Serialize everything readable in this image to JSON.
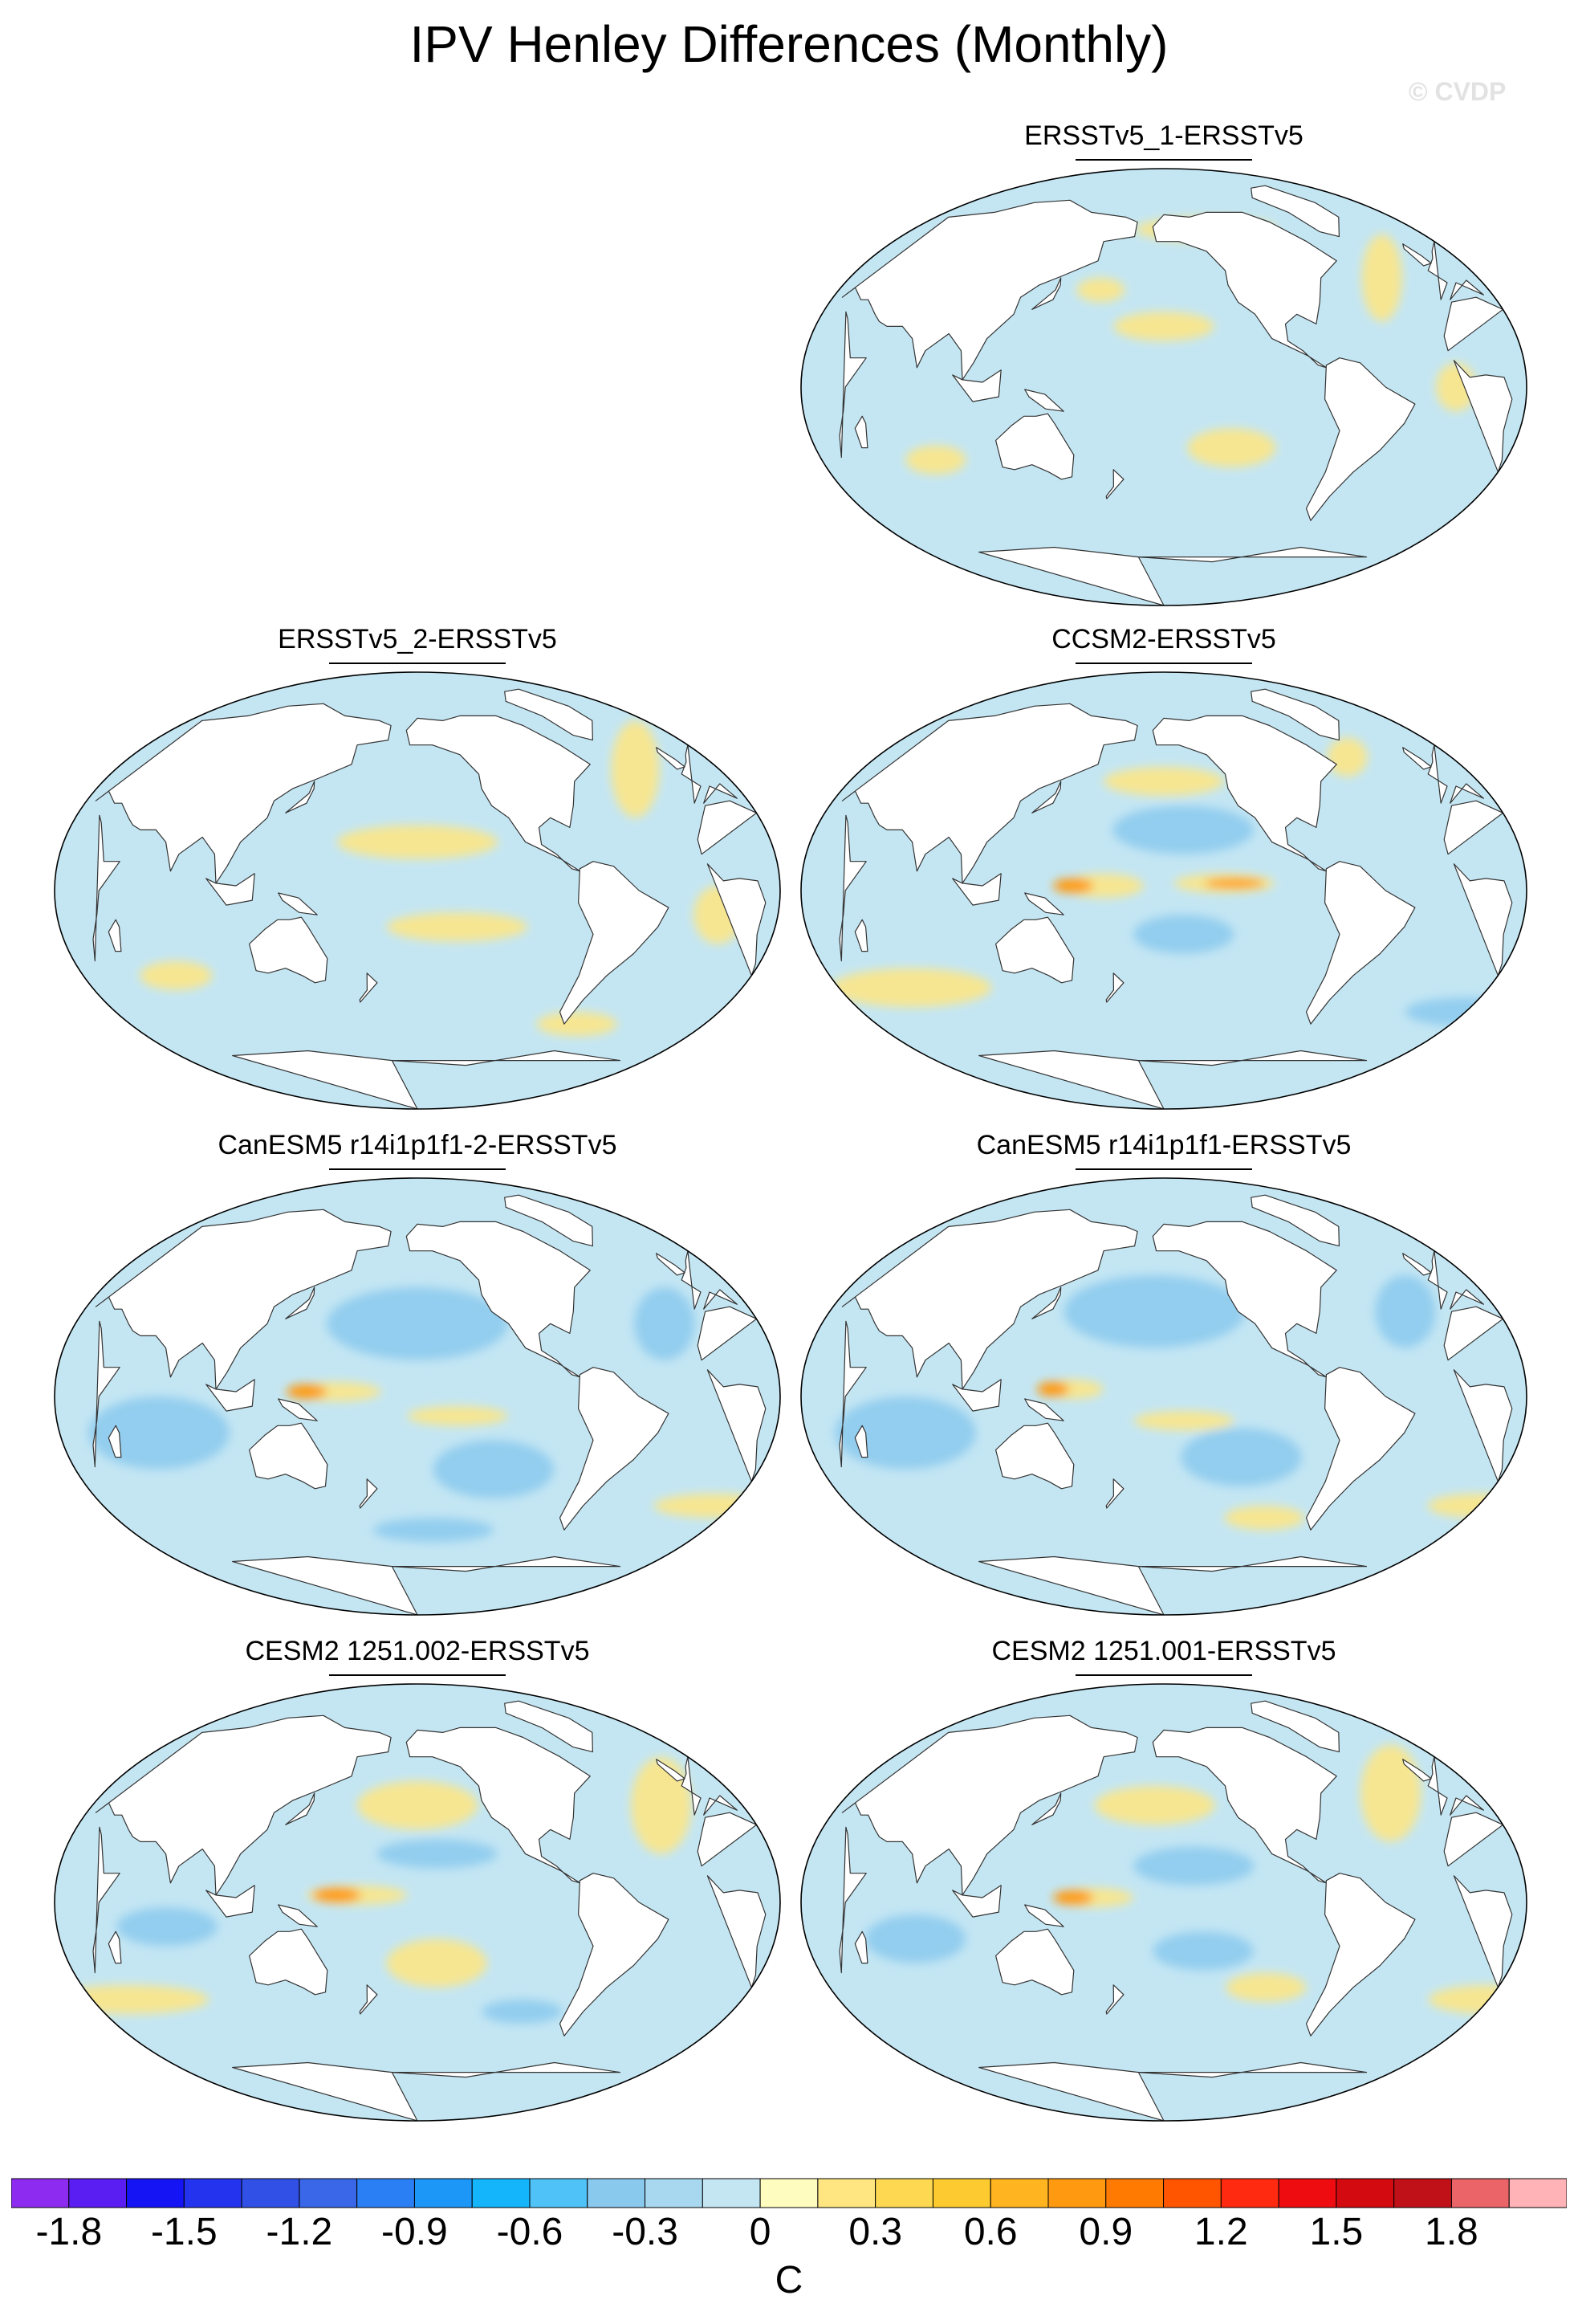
{
  "title": "IPV Henley Differences (Monthly)",
  "copyright": "© CVDP",
  "panels": [
    {
      "id": "ersstv5-1",
      "title": "ERSSTv5_1-ERSSTv5",
      "slot": "top-right",
      "features": [
        {
          "type": "pos",
          "lon": -160,
          "lat": 25,
          "rlon": 25,
          "rlat": 6
        },
        {
          "type": "pos",
          "lon": 165,
          "lat": 40,
          "rlon": 12,
          "rlat": 5
        },
        {
          "type": "pos",
          "lon": -125,
          "lat": -25,
          "rlon": 22,
          "rlat": 8
        },
        {
          "type": "pos",
          "lon": 80,
          "lat": -30,
          "rlon": 15,
          "rlat": 6
        },
        {
          "type": "pos",
          "lon": -35,
          "lat": 45,
          "rlon": 10,
          "rlat": 18
        },
        {
          "type": "pos",
          "lon": -15,
          "lat": 0,
          "rlon": 10,
          "rlat": 10
        },
        {
          "type": "pos",
          "lon": -130,
          "lat": 65,
          "rlon": 35,
          "rlat": 5
        }
      ]
    },
    {
      "id": "ersstv5-2",
      "title": "ERSSTv5_2-ERSSTv5",
      "slot": "left-2",
      "features": [
        {
          "type": "pos",
          "lon": -160,
          "lat": 20,
          "rlon": 40,
          "rlat": 7
        },
        {
          "type": "pos",
          "lon": -140,
          "lat": -15,
          "rlon": 35,
          "rlat": 6
        },
        {
          "type": "pos",
          "lon": 70,
          "lat": -35,
          "rlon": 18,
          "rlat": 6
        },
        {
          "type": "pos",
          "lon": -30,
          "lat": 50,
          "rlon": 12,
          "rlat": 20
        },
        {
          "type": "pos",
          "lon": -10,
          "lat": -10,
          "rlon": 12,
          "rlat": 12
        },
        {
          "type": "pos",
          "lon": -60,
          "lat": -55,
          "rlon": 20,
          "rlat": 5
        }
      ]
    },
    {
      "id": "ccsm2",
      "title": "CCSM2-ERSSTv5",
      "slot": "right-2",
      "features": [
        {
          "type": "pos",
          "lon": 170,
          "lat": 2,
          "rlon": 20,
          "rlat": 5
        },
        {
          "type": "strong",
          "lon": 155,
          "lat": 2,
          "rlon": 10,
          "rlat": 3
        },
        {
          "type": "pos",
          "lon": -130,
          "lat": 3,
          "rlon": 25,
          "rlat": 4
        },
        {
          "type": "strong",
          "lon": -125,
          "lat": 3,
          "rlon": 15,
          "rlat": 2
        },
        {
          "type": "neg",
          "lon": -150,
          "lat": 25,
          "rlon": 35,
          "rlat": 10
        },
        {
          "type": "neg",
          "lon": -150,
          "lat": -18,
          "rlon": 25,
          "rlat": 8
        },
        {
          "type": "pos",
          "lon": -160,
          "lat": 45,
          "rlon": 30,
          "rlat": 6
        },
        {
          "type": "pos",
          "lon": -45,
          "lat": 55,
          "rlon": 10,
          "rlat": 8
        },
        {
          "type": "pos",
          "lon": 60,
          "lat": -40,
          "rlon": 40,
          "rlat": 8
        },
        {
          "type": "neg",
          "lon": 20,
          "lat": -50,
          "rlon": 30,
          "rlat": 6
        }
      ]
    },
    {
      "id": "canesm5-2",
      "title": "CanESM5 r14i1p1f1-2-ERSSTv5",
      "slot": "left-3",
      "features": [
        {
          "type": "neg",
          "lon": -160,
          "lat": 30,
          "rlon": 45,
          "rlat": 15
        },
        {
          "type": "neg",
          "lon": 70,
          "lat": -15,
          "rlon": 35,
          "rlat": 15
        },
        {
          "type": "neg",
          "lon": -120,
          "lat": -30,
          "rlon": 30,
          "rlat": 12
        },
        {
          "type": "neg",
          "lon": -30,
          "lat": 30,
          "rlon": 15,
          "rlat": 15
        },
        {
          "type": "pos",
          "lon": 160,
          "lat": 2,
          "rlon": 22,
          "rlat": 4
        },
        {
          "type": "strong",
          "lon": 145,
          "lat": 2,
          "rlon": 10,
          "rlat": 3
        },
        {
          "type": "pos",
          "lon": -140,
          "lat": -8,
          "rlon": 25,
          "rlat": 4
        },
        {
          "type": "pos",
          "lon": 10,
          "lat": -45,
          "rlon": 30,
          "rlat": 5
        },
        {
          "type": "neg",
          "lon": -150,
          "lat": -55,
          "rlon": 30,
          "rlat": 5
        }
      ]
    },
    {
      "id": "canesm5-1",
      "title": "CanESM5 r14i1p1f1-ERSSTv5",
      "slot": "right-3",
      "features": [
        {
          "type": "neg",
          "lon": -165,
          "lat": 35,
          "rlon": 45,
          "rlat": 15
        },
        {
          "type": "neg",
          "lon": 70,
          "lat": -15,
          "rlon": 35,
          "rlat": 15
        },
        {
          "type": "neg",
          "lon": -120,
          "lat": -25,
          "rlon": 30,
          "rlat": 12
        },
        {
          "type": "neg",
          "lon": -30,
          "lat": 35,
          "rlon": 15,
          "rlat": 15
        },
        {
          "type": "pos",
          "lon": 155,
          "lat": 3,
          "rlon": 15,
          "rlat": 4
        },
        {
          "type": "strong",
          "lon": 145,
          "lat": 3,
          "rlon": 8,
          "rlat": 3
        },
        {
          "type": "pos",
          "lon": -150,
          "lat": -10,
          "rlon": 25,
          "rlat": 4
        },
        {
          "type": "pos",
          "lon": 20,
          "lat": -45,
          "rlon": 25,
          "rlat": 5
        },
        {
          "type": "pos",
          "lon": -100,
          "lat": -50,
          "rlon": 20,
          "rlat": 5
        }
      ]
    },
    {
      "id": "cesm2-002",
      "title": "CESM2 1251.002-ERSSTv5",
      "slot": "left-4",
      "features": [
        {
          "type": "pos",
          "lon": 170,
          "lat": 3,
          "rlon": 25,
          "rlat": 4
        },
        {
          "type": "strong",
          "lon": 160,
          "lat": 3,
          "rlon": 12,
          "rlat": 3
        },
        {
          "type": "pos",
          "lon": -160,
          "lat": 40,
          "rlon": 30,
          "rlat": 10
        },
        {
          "type": "pos",
          "lon": -150,
          "lat": -25,
          "rlon": 25,
          "rlat": 10
        },
        {
          "type": "neg",
          "lon": -150,
          "lat": 20,
          "rlon": 30,
          "rlat": 6
        },
        {
          "type": "neg",
          "lon": 75,
          "lat": -10,
          "rlon": 25,
          "rlat": 8
        },
        {
          "type": "pos",
          "lon": -25,
          "lat": 40,
          "rlon": 15,
          "rlat": 20
        },
        {
          "type": "pos",
          "lon": 40,
          "lat": -40,
          "rlon": 40,
          "rlat": 6
        },
        {
          "type": "neg",
          "lon": -100,
          "lat": -45,
          "rlon": 20,
          "rlat": 5
        }
      ]
    },
    {
      "id": "cesm2-001",
      "title": "CESM2 1251.001-ERSSTv5",
      "slot": "right-4",
      "features": [
        {
          "type": "pos",
          "lon": 165,
          "lat": 2,
          "rlon": 20,
          "rlat": 4
        },
        {
          "type": "strong",
          "lon": 155,
          "lat": 2,
          "rlon": 10,
          "rlat": 3
        },
        {
          "type": "pos",
          "lon": -165,
          "lat": 40,
          "rlon": 30,
          "rlat": 8
        },
        {
          "type": "neg",
          "lon": -145,
          "lat": 15,
          "rlon": 30,
          "rlat": 8
        },
        {
          "type": "neg",
          "lon": 75,
          "lat": -15,
          "rlon": 25,
          "rlat": 10
        },
        {
          "type": "neg",
          "lon": -140,
          "lat": -20,
          "rlon": 25,
          "rlat": 8
        },
        {
          "type": "pos",
          "lon": -30,
          "lat": 45,
          "rlon": 15,
          "rlat": 20
        },
        {
          "type": "pos",
          "lon": 20,
          "lat": -40,
          "rlon": 30,
          "rlat": 6
        },
        {
          "type": "pos",
          "lon": -105,
          "lat": -35,
          "rlon": 20,
          "rlat": 6
        }
      ]
    }
  ],
  "colorbar": {
    "unit": "C",
    "tick_values": [
      -1.8,
      -1.5,
      -1.2,
      -0.9,
      -0.6,
      -0.3,
      0,
      0.3,
      0.6,
      0.9,
      1.2,
      1.5,
      1.8
    ],
    "tick_labels": [
      "-1.8",
      "-1.5",
      "-1.2",
      "-0.9",
      "-0.6",
      "-0.3",
      "0",
      "0.3",
      "0.6",
      "0.9",
      "1.2",
      "1.5",
      "1.8"
    ],
    "colors": [
      "#8d2cf0",
      "#5a1ef2",
      "#1414f5",
      "#2434ee",
      "#3050e6",
      "#3a66e8",
      "#2b7ff5",
      "#1c97f8",
      "#14b5fb",
      "#4fc3f7",
      "#8ac9ee",
      "#a8d8f0",
      "#c4e6f3",
      "#fffcc0",
      "#ffe680",
      "#fdd850",
      "#fdcb30",
      "#ffb420",
      "#ff9a10",
      "#ff7a00",
      "#ff5500",
      "#ff2a10",
      "#ee0c10",
      "#d30a10",
      "#c01018",
      "#ea6468",
      "#ffb3b6"
    ],
    "neutral_neg": "#c4e6f3",
    "neutral_pos": "#fffcc0",
    "neg_mid": "#8ac9ee",
    "pos_mid": "#ffe680",
    "pos_strong": "#ff9a10"
  }
}
